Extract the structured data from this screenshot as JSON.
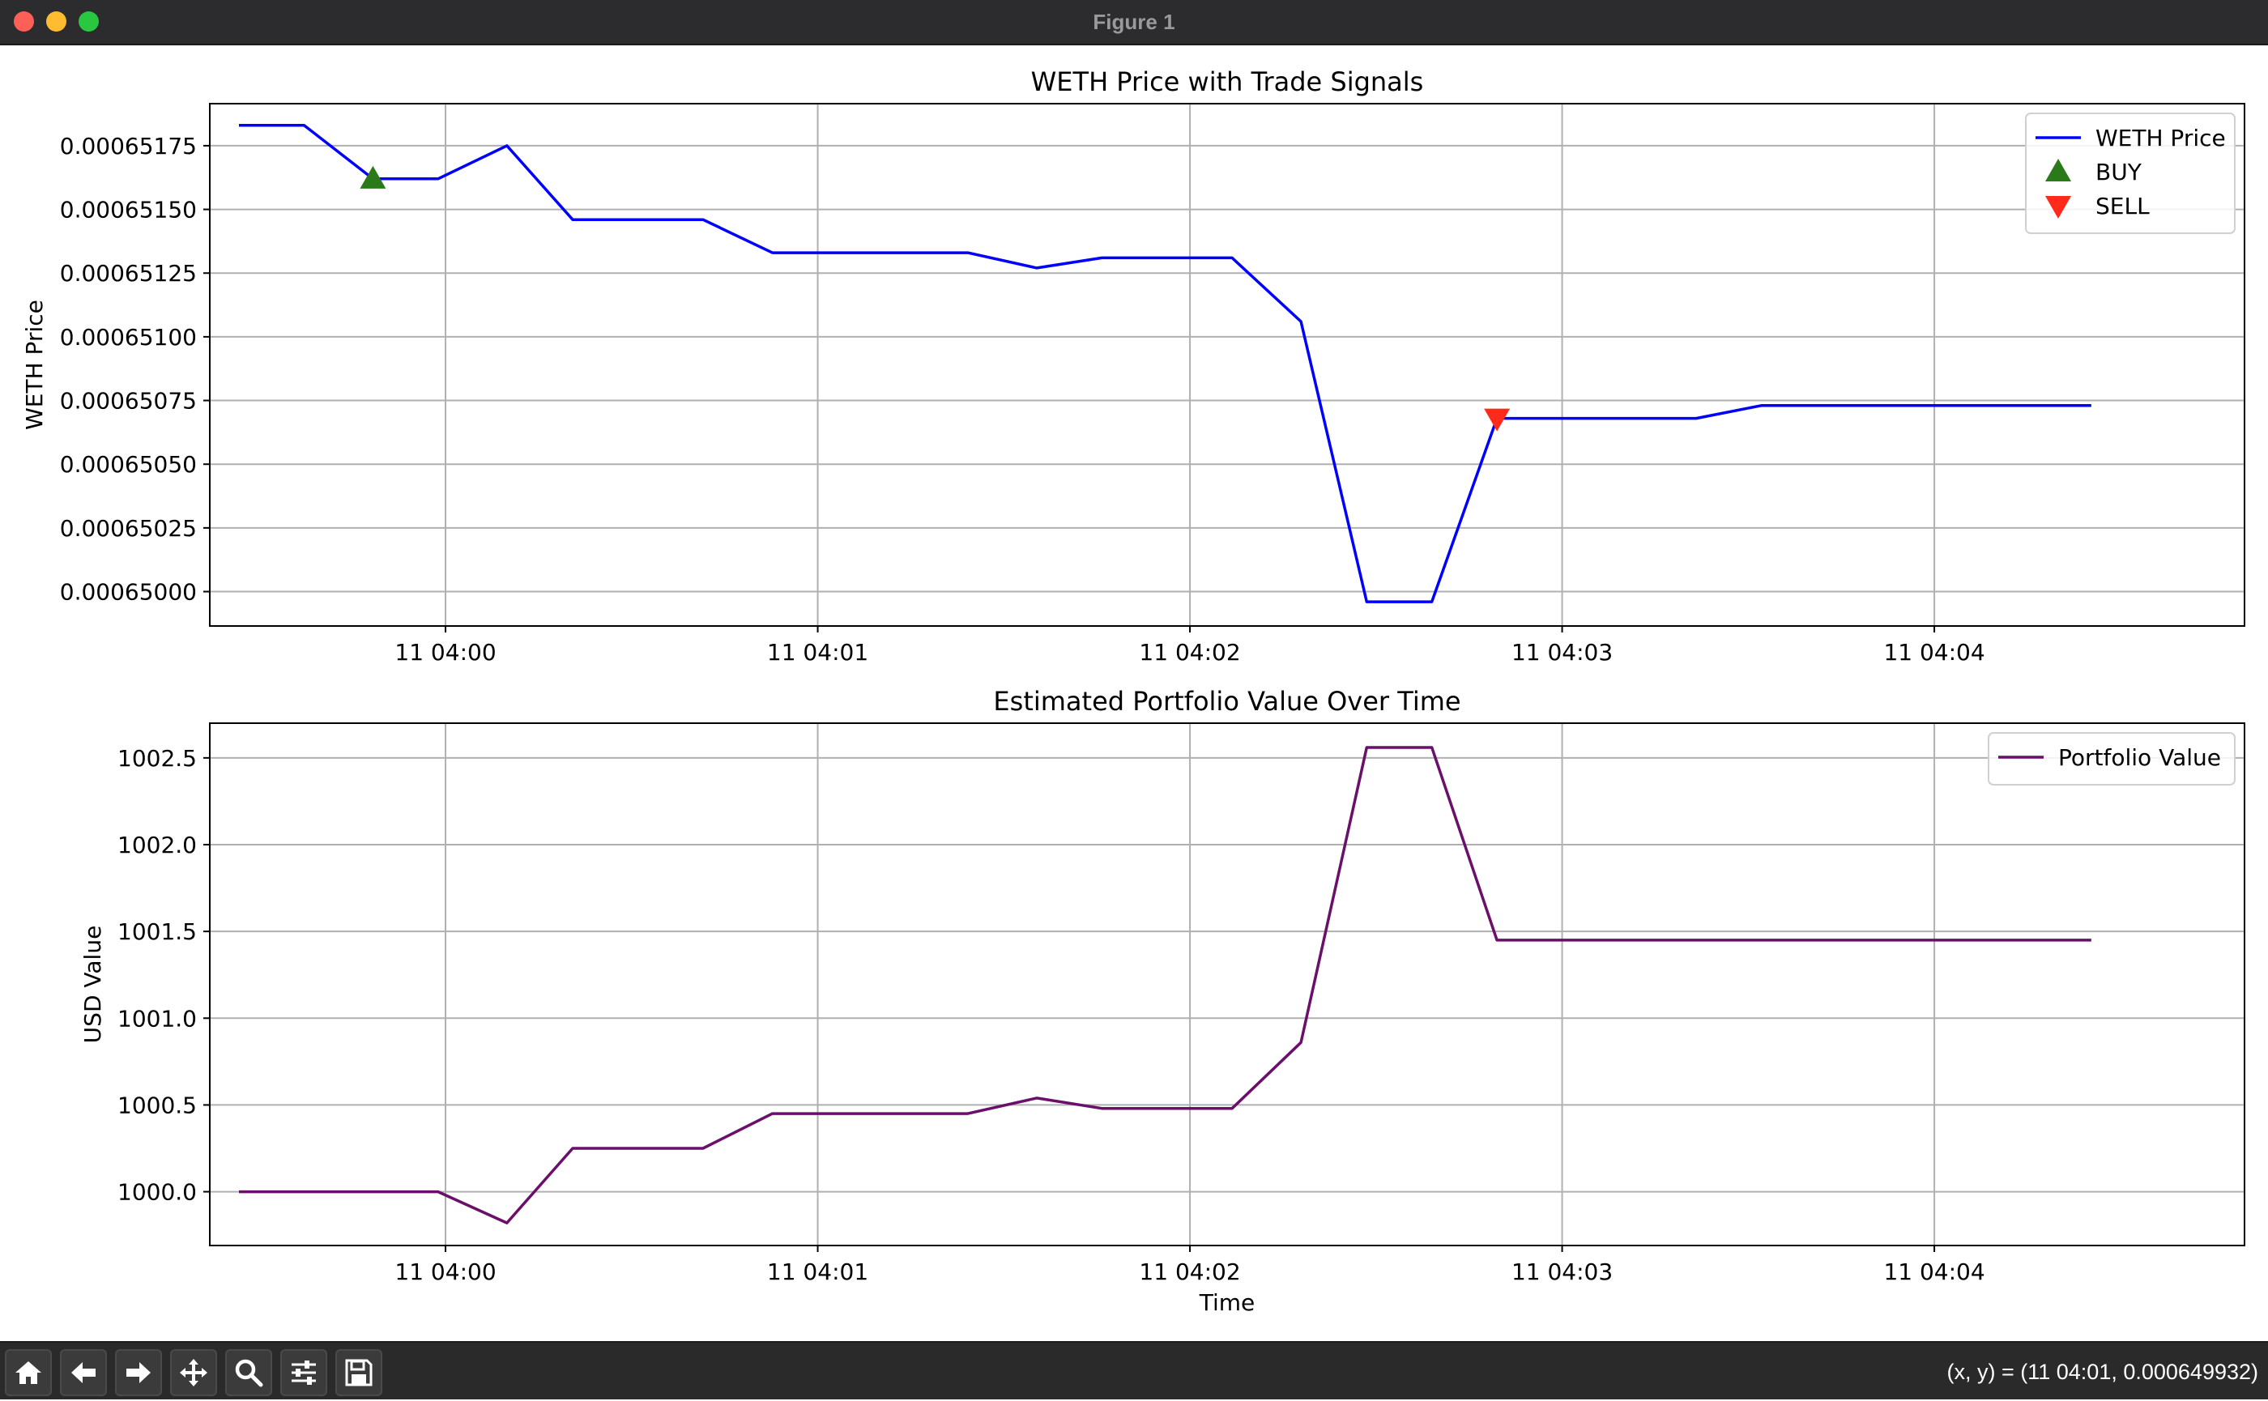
{
  "window": {
    "title": "Figure 1"
  },
  "toolbar": {
    "buttons": [
      {
        "icon": "home-icon"
      },
      {
        "icon": "back-arrow-icon"
      },
      {
        "icon": "forward-arrow-icon"
      },
      {
        "icon": "pan-icon"
      },
      {
        "icon": "zoom-icon"
      },
      {
        "icon": "configure-subplots-icon"
      },
      {
        "icon": "save-icon"
      }
    ],
    "coords": "(x, y) = (11 04:01, 0.000649932)"
  },
  "chart_data": [
    {
      "type": "line",
      "title": "WETH Price with Trade Signals",
      "xlabel": "",
      "ylabel": "WETH Price",
      "x_ticks": [
        "11 04:00",
        "11 04:01",
        "11 04:02",
        "11 04:03",
        "11 04:04"
      ],
      "x_tick_values": [
        30,
        90,
        150,
        210,
        270
      ],
      "xlim": [
        -8,
        320
      ],
      "y_ticks": [
        "0.00065000",
        "0.00065025",
        "0.00065050",
        "0.00065075",
        "0.00065100",
        "0.00065125",
        "0.00065150",
        "0.00065175"
      ],
      "y_tick_values": [
        0.00065,
        0.00065025,
        0.0006505,
        0.00065075,
        0.000651,
        0.00065125,
        0.0006515,
        0.00065175
      ],
      "ylim": [
        0.000649865,
        0.000651915
      ],
      "grid": true,
      "legend": "top-right",
      "series": [
        {
          "name": "WETH Price",
          "color": "#0000ff",
          "x": [
            -3.3,
            7.2,
            18.3,
            28.8,
            39.9,
            50.5,
            71.5,
            82.7,
            103.7,
            114.2,
            125.3,
            135.8,
            146.3,
            156.8,
            167.9,
            178.5,
            189.0,
            199.5,
            210.6,
            231.6,
            242.1,
            252.6,
            263.8,
            274.3,
            295.3
          ],
          "y": [
            0.00065183,
            0.00065183,
            0.00065162,
            0.00065162,
            0.00065175,
            0.00065146,
            0.00065146,
            0.00065133,
            0.00065133,
            0.00065133,
            0.00065127,
            0.00065131,
            0.00065131,
            0.00065131,
            0.00065106,
            0.00064996,
            0.00064996,
            0.00065068,
            0.00065068,
            0.00065068,
            0.00065073,
            0.00065073,
            0.00065073,
            0.00065073,
            0.00065073
          ]
        }
      ],
      "markers": [
        {
          "name": "BUY",
          "shape": "triangle-up",
          "color": "#2a7a1a",
          "x": [
            18.3
          ],
          "y": [
            0.00065162
          ]
        },
        {
          "name": "SELL",
          "shape": "triangle-down",
          "color": "#ff2a1a",
          "x": [
            199.5
          ],
          "y": [
            0.00065068
          ]
        }
      ]
    },
    {
      "type": "line",
      "title": "Estimated Portfolio Value Over Time",
      "xlabel": "Time",
      "ylabel": "USD Value",
      "x_ticks": [
        "11 04:00",
        "11 04:01",
        "11 04:02",
        "11 04:03",
        "11 04:04"
      ],
      "x_tick_values": [
        30,
        90,
        150,
        210,
        270
      ],
      "xlim": [
        -8,
        320
      ],
      "y_ticks": [
        "1000.0",
        "1000.5",
        "1001.0",
        "1001.5",
        "1002.0",
        "1002.5"
      ],
      "y_tick_values": [
        1000.0,
        1000.5,
        1001.0,
        1001.5,
        1002.0,
        1002.5
      ],
      "ylim": [
        999.69,
        1002.7
      ],
      "grid": true,
      "legend": "top-right",
      "series": [
        {
          "name": "Portfolio Value",
          "color": "#6a0f6a",
          "x": [
            -3.3,
            7.2,
            18.3,
            28.8,
            39.9,
            50.5,
            71.5,
            82.7,
            103.7,
            114.2,
            125.3,
            135.8,
            146.3,
            156.8,
            167.9,
            178.5,
            189.0,
            199.5,
            210.6,
            231.6,
            242.1,
            252.6,
            263.8,
            274.3,
            295.3
          ],
          "y": [
            1000.0,
            1000.0,
            1000.0,
            1000.0,
            999.82,
            1000.25,
            1000.25,
            1000.45,
            1000.45,
            1000.45,
            1000.54,
            1000.48,
            1000.48,
            1000.48,
            1000.86,
            1002.56,
            1002.56,
            1001.45,
            1001.45,
            1001.45,
            1001.45,
            1001.45,
            1001.45,
            1001.45,
            1001.45
          ]
        }
      ]
    }
  ]
}
